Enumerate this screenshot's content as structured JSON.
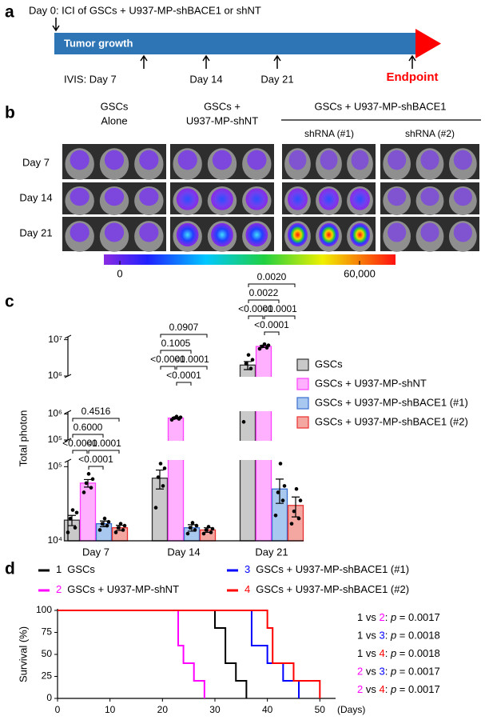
{
  "panel_a": {
    "label": "a",
    "title": "Day 0: ICI of GSCs + U937-MP-shBACE1 or shNT",
    "bar_label": "Tumor growth",
    "timepoints": [
      "IVIS: Day 7",
      "Day 14",
      "Day 21"
    ],
    "endpoint": "Endpoint"
  },
  "panel_b": {
    "label": "b",
    "groups": [
      {
        "lines": [
          "GSCs",
          "Alone"
        ]
      },
      {
        "lines": [
          "GSCs +",
          "U937-MP-shNT"
        ]
      },
      {
        "lines": [
          "GSCs + U937-MP-shBACE1"
        ],
        "subgroups": [
          "shRNA (#1)",
          "shRNA (#2)"
        ]
      }
    ],
    "rows": [
      "Day 7",
      "Day 14",
      "Day 21"
    ],
    "colorbar": {
      "clim": [
        -4000,
        69000
      ],
      "ticks": [
        0,
        {
          "value": 60000,
          "label": "60,000"
        }
      ]
    }
  },
  "panel_c": {
    "label": "c"
  },
  "panel_d": {
    "label": "d"
  },
  "chart_data": [
    {
      "type": "bar",
      "scale": "log",
      "ylabel": "Total photon",
      "legend": "right",
      "categories": [
        "Day 7",
        "Day 14",
        "Day 21"
      ],
      "segments": [
        {
          "ylim": [
            10000,
            120000
          ],
          "yticks": [
            {
              "value": 10000,
              "label": "10⁴"
            },
            {
              "value": 100000,
              "label": "10⁵"
            }
          ]
        },
        {
          "ylim": [
            100000,
            1200000
          ],
          "yticks": [
            {
              "value": 100000,
              "label": "10⁵"
            },
            {
              "value": 1000000,
              "label": "10⁶"
            }
          ]
        },
        {
          "ylim": [
            1000000,
            12000000
          ],
          "yticks": [
            {
              "value": 1000000,
              "label": "10⁶"
            },
            {
              "value": 10000000,
              "label": "10⁷"
            }
          ]
        }
      ],
      "series": [
        {
          "name": "GSCs",
          "color": "#c9c9c9",
          "edge": "#333333",
          "values": [
            19000,
            70000,
            2000000
          ],
          "errors": [
            3000,
            20000,
            500000
          ],
          "points": [
            [
              13000,
              15000,
              20000,
              24000,
              26000
            ],
            [
              28000,
              55000,
              72000,
              95000,
              110000
            ],
            [
              500000,
              1600000,
              2200000,
              2800000,
              3800000
            ]
          ]
        },
        {
          "name": "GSCs + U937-MP-shNT",
          "color": "#ffb0ff",
          "edge": "#ff40ff",
          "values": [
            60000,
            700000,
            6500000
          ],
          "errors": [
            7000,
            50000,
            400000
          ],
          "points": [
            [
              45000,
              52000,
              60000,
              68000,
              80000
            ],
            [
              600000,
              650000,
              700000,
              750000,
              800000
            ],
            [
              5600000,
              6000000,
              6500000,
              7000000,
              7500000
            ]
          ]
        },
        {
          "name": "GSCs + U937-MP-shBACE1 (#1)",
          "color": "#a8c8f0",
          "edge": "#3a6fd0",
          "values": [
            17000,
            15000,
            50000
          ],
          "errors": [
            1500,
            1500,
            18000
          ],
          "points": [
            [
              14000,
              16000,
              17000,
              18000,
              20000
            ],
            [
              12500,
              14000,
              15000,
              16000,
              17500
            ],
            [
              22000,
              35000,
              45000,
              55000,
              110000
            ]
          ]
        },
        {
          "name": "GSCs + U937-MP-shBACE1 (#2)",
          "color": "#f4a6a0",
          "edge": "#e83030",
          "values": [
            15000,
            14000,
            30000
          ],
          "errors": [
            1200,
            1000,
            9000
          ],
          "points": [
            [
              13000,
              14000,
              15000,
              16000,
              17000
            ],
            [
              12500,
              13000,
              14000,
              14500,
              15500
            ],
            [
              17000,
              20000,
              25000,
              35000,
              50000
            ]
          ]
        }
      ],
      "comparisons": [
        [
          "<0.0001",
          "<0.0001",
          "<0.0001",
          "0.6000",
          "0.4516"
        ],
        [
          "<0.0001",
          "<0.0001",
          "<0.0001",
          "0.1005",
          "0.0907"
        ],
        [
          "<0.0001",
          "<0.0001",
          "<0.0001",
          "0.0022",
          "0.0020"
        ]
      ]
    },
    {
      "type": "line",
      "step": true,
      "xlabel": "(Days)",
      "ylabel": "Survival (%)",
      "xlim": [
        0,
        53
      ],
      "xticks": [
        0,
        10,
        20,
        30,
        40,
        50
      ],
      "ylim": [
        0,
        100
      ],
      "yticks": [
        0,
        25,
        50,
        75,
        100
      ],
      "series": [
        {
          "id": "1",
          "name": "GSCs",
          "color": "#000000",
          "x": [
            0,
            30,
            32,
            34,
            36
          ],
          "values": [
            100,
            80,
            40,
            20,
            0
          ]
        },
        {
          "id": "2",
          "name": "GSCs + U937-MP-shNT",
          "color": "#ff00ff",
          "x": [
            0,
            23,
            24,
            26,
            28
          ],
          "values": [
            100,
            60,
            40,
            20,
            0
          ]
        },
        {
          "id": "3",
          "name": "GSCs + U937-MP-shBACE1 (#1)",
          "color": "#0000ff",
          "x": [
            0,
            37,
            40,
            43,
            46
          ],
          "values": [
            100,
            60,
            40,
            20,
            0
          ]
        },
        {
          "id": "4",
          "name": "GSCs + U937-MP-shBACE1 (#2)",
          "color": "#ff0000",
          "x": [
            0,
            40,
            41,
            45,
            50
          ],
          "values": [
            100,
            80,
            40,
            20,
            0
          ]
        }
      ],
      "annotations": [
        {
          "parts": [
            "1",
            " vs ",
            "2",
            ": ",
            "p",
            " = 0.0017"
          ]
        },
        {
          "parts": [
            "1",
            " vs ",
            "3",
            ": ",
            "p",
            " = 0.0018"
          ]
        },
        {
          "parts": [
            "1",
            " vs ",
            "4",
            ": ",
            "p",
            " = 0.0018"
          ]
        },
        {
          "parts": [
            "2",
            " vs ",
            "3",
            ": ",
            "p",
            " = 0.0017"
          ]
        },
        {
          "parts": [
            "2",
            " vs ",
            "4",
            ": ",
            "p",
            " = 0.0017"
          ]
        }
      ]
    }
  ]
}
